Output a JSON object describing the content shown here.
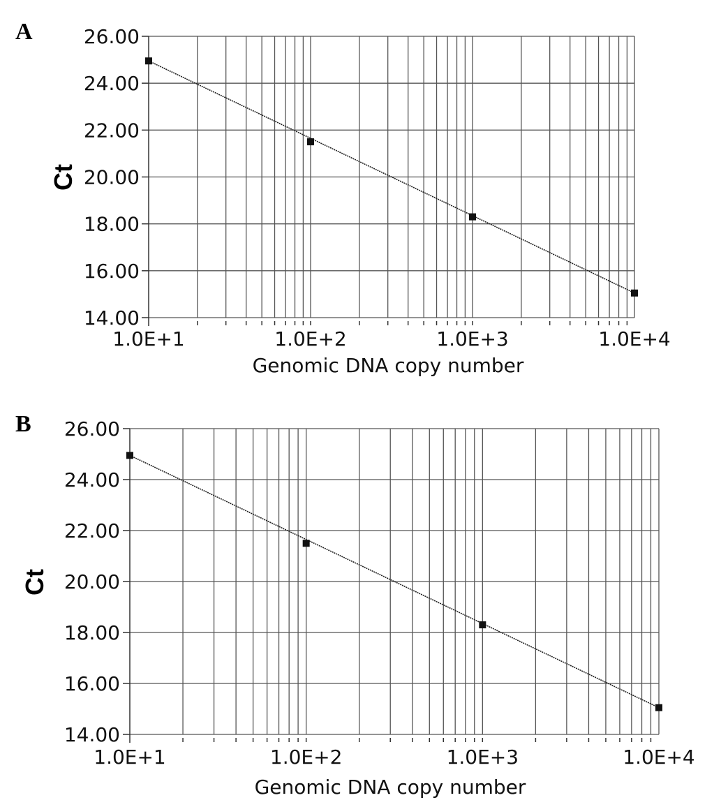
{
  "chart_data": [
    {
      "panel": "A",
      "type": "scatter",
      "xlabel": "Genomic DNA copy number",
      "ylabel": "Ct",
      "xscale": "log",
      "xlim": [
        10,
        10000
      ],
      "ylim": [
        14,
        26
      ],
      "x_tick_labels": [
        "1.0E+1",
        "1.0E+2",
        "1.0E+3",
        "1.0E+4"
      ],
      "y_tick_labels": [
        "26.00",
        "24.00",
        "22.00",
        "20.00",
        "18.00",
        "16.00",
        "14.00"
      ],
      "grid": true,
      "series": [
        {
          "x": [
            10,
            100,
            1000,
            10000
          ],
          "y": [
            24.95,
            21.5,
            18.3,
            15.05
          ]
        }
      ],
      "fit_line": {
        "x": [
          10,
          10000
        ],
        "y": [
          24.95,
          15.05
        ]
      }
    },
    {
      "panel": "B",
      "type": "scatter",
      "xlabel": "Genomic DNA copy number",
      "ylabel": "Ct",
      "xscale": "log",
      "xlim": [
        10,
        10000
      ],
      "ylim": [
        14,
        26
      ],
      "x_tick_labels": [
        "1.0E+1",
        "1.0E+2",
        "1.0E+3",
        "1.0E+4"
      ],
      "y_tick_labels": [
        "26.00",
        "24.00",
        "22.00",
        "20.00",
        "18.00",
        "16.00",
        "14.00"
      ],
      "grid": true,
      "series": [
        {
          "x": [
            10,
            100,
            1000,
            10000
          ],
          "y": [
            24.95,
            21.5,
            18.3,
            15.05
          ]
        }
      ],
      "fit_line": {
        "x": [
          10,
          10000
        ],
        "y": [
          24.95,
          15.05
        ]
      }
    }
  ]
}
